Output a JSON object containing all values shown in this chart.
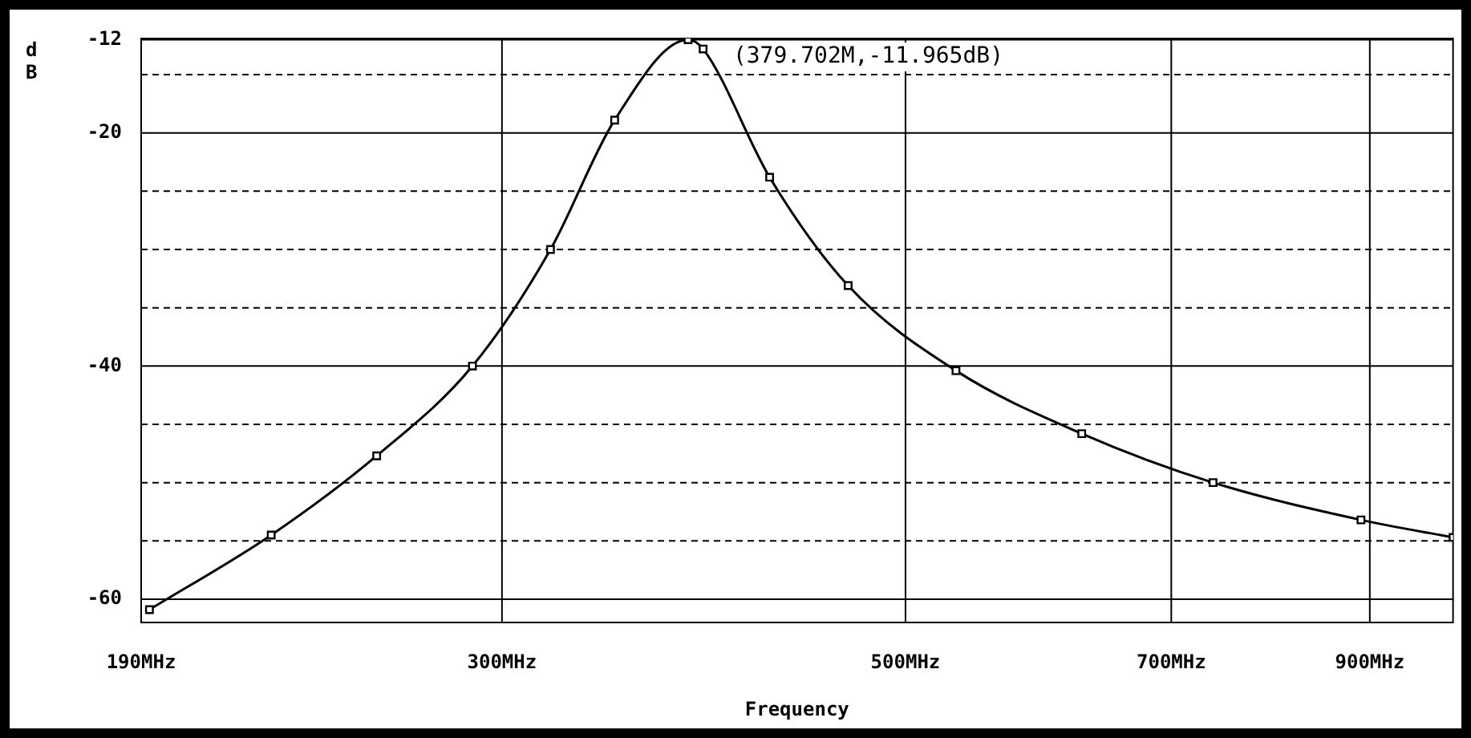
{
  "chart_data": {
    "type": "line",
    "xlabel": "Frequency",
    "ylabel": "dB",
    "log": "x",
    "xlim": [
      190,
      1000
    ],
    "xticks": [
      {
        "value": 190,
        "label": "190MHz"
      },
      {
        "value": 300,
        "label": "300MHz"
      },
      {
        "value": 500,
        "label": "500MHz"
      },
      {
        "value": 700,
        "label": "700MHz"
      },
      {
        "value": 900,
        "label": "900MHz"
      }
    ],
    "ylim": [
      -62,
      -11.9
    ],
    "yticks": [
      -12,
      {
        "value": -15,
        "label": null
      },
      -20,
      {
        "value": -25,
        "label": null
      },
      {
        "value": -30,
        "label": null
      },
      {
        "value": -35,
        "label": null
      },
      -40,
      {
        "value": -45,
        "label": null
      },
      {
        "value": -50,
        "label": null
      },
      {
        "value": -55,
        "label": null
      },
      -60
    ],
    "grid": true,
    "marker": "square",
    "line_style": "solid",
    "series": [
      {
        "color": "#000000",
        "x": [
          192,
          224,
          256,
          289,
          319,
          346,
          379.702,
          387,
          421,
          465,
          533,
          625,
          738,
          890,
          1000
        ],
        "values": [
          -60.9,
          -54.5,
          -47.7,
          -40,
          -30,
          -18.9,
          -12,
          -12.8,
          -23.8,
          -33.1,
          -40.4,
          -45.8,
          -50,
          -53.2,
          -54.7
        ]
      }
    ],
    "annotations": [
      {
        "text": "(379.702M,-11.965dB)",
        "x": 379.702,
        "y": -11.965
      }
    ]
  }
}
